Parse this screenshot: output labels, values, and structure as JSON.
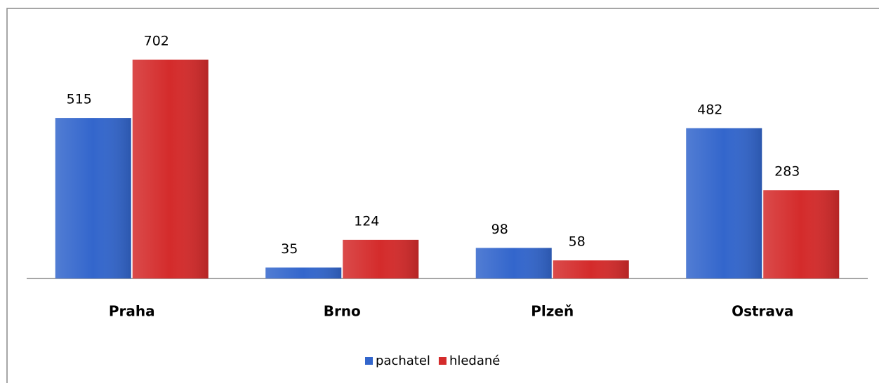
{
  "chart_data": {
    "type": "bar",
    "categories": [
      "Praha",
      "Brno",
      "Plzeň",
      "Ostrava"
    ],
    "series": [
      {
        "name": "pachatel",
        "color": "#3366cc",
        "values": [
          515,
          35,
          98,
          482
        ]
      },
      {
        "name": "hledané",
        "color": "#d42b2b",
        "values": [
          702,
          124,
          58,
          283
        ]
      }
    ]
  }
}
